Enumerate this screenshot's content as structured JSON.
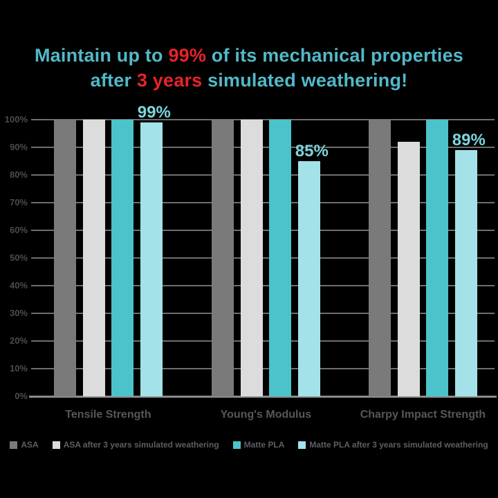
{
  "title": {
    "line1": {
      "pre": "Maintain up to ",
      "highlight": "99%",
      "post": " of its mechanical properties"
    },
    "line2": {
      "pre": "after ",
      "highlight": "3 years",
      "post": " simulated weathering!"
    }
  },
  "colors": {
    "background": "#000000",
    "title_teal": "#52b9c8",
    "title_red": "#e8232a",
    "gridline": "#6e6e6e",
    "axis_line": "#8c8c8c",
    "ytick_text": "#4c4c4c",
    "category_text": "#55585b",
    "legend_text": "#5c5f62",
    "value_label_text": "#7dd5de"
  },
  "chart_data": {
    "type": "bar",
    "title": "Maintain up to 99% of its mechanical properties after 3 years simulated weathering!",
    "categories": [
      "Tensile Strength",
      "Young's Modulus",
      "Charpy Impact Strength"
    ],
    "series": [
      {
        "name": "ASA",
        "color": "#7a7a7a",
        "values": [
          100,
          100,
          100
        ],
        "data_labels": [
          "",
          "",
          ""
        ]
      },
      {
        "name": "ASA after 3 years simulated weathering",
        "color": "#dcdcdc",
        "values": [
          100,
          100,
          92
        ],
        "data_labels": [
          "",
          "",
          ""
        ]
      },
      {
        "name": "Matte PLA",
        "color": "#4cc3ca",
        "values": [
          100,
          100,
          100
        ],
        "data_labels": [
          "",
          "",
          ""
        ]
      },
      {
        "name": "Matte PLA after 3 years simulated weathering",
        "color": "#a3e2e9",
        "values": [
          99,
          85,
          89
        ],
        "data_labels": [
          "99%",
          "85%",
          "89%"
        ]
      }
    ],
    "xlabel": "",
    "ylabel": "",
    "ylim": [
      0,
      100
    ],
    "yticks": [
      0,
      10,
      20,
      30,
      40,
      50,
      60,
      70,
      80,
      90,
      100
    ],
    "ytick_suffix": "%",
    "grid": true,
    "legend_position": "bottom"
  }
}
